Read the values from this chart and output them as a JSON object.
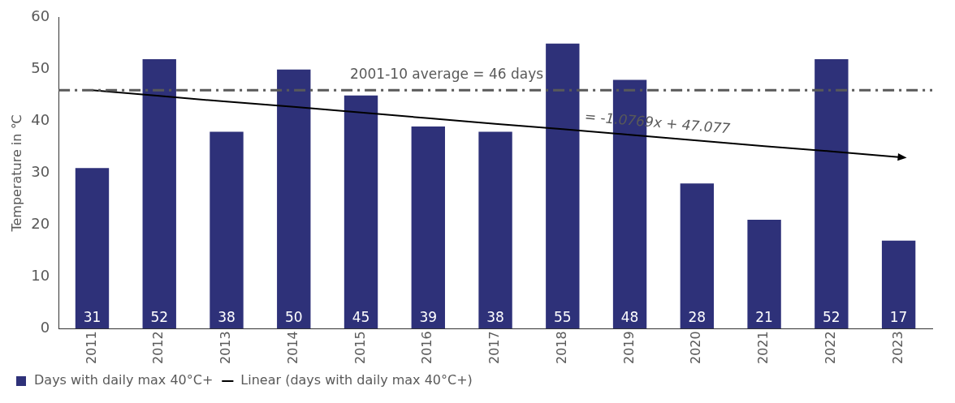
{
  "chart_data": {
    "type": "bar",
    "ylabel": "Temperature in ℃",
    "categories": [
      "2011",
      "2012",
      "2013",
      "2014",
      "2015",
      "2016",
      "2017",
      "2018",
      "2019",
      "2020",
      "2021",
      "2022",
      "2023"
    ],
    "series": [
      {
        "name": "Days with daily max 40°C+",
        "color": "#2e3179",
        "values": [
          31,
          52,
          38,
          50,
          45,
          39,
          38,
          55,
          48,
          28,
          21,
          52,
          17
        ],
        "value_labels": [
          "31",
          "52",
          "38",
          "50",
          "45",
          "39",
          "38",
          "55",
          "48",
          "28",
          "21",
          "52",
          "17"
        ]
      },
      {
        "name": "Linear (days with daily max 40°C+)",
        "type": "line",
        "color": "#000000",
        "values": [
          46.0,
          44.9,
          43.8,
          42.8,
          41.7,
          40.6,
          39.5,
          38.5,
          37.4,
          36.3,
          35.2,
          34.2,
          33.1
        ]
      }
    ],
    "ylim": [
      0,
      60
    ],
    "yticks": [
      0,
      10,
      20,
      30,
      40,
      50,
      60
    ],
    "grid": false,
    "legend": "bottom",
    "ref_lines": [
      {
        "axis": "y",
        "value": 46,
        "label": "2001-10 average = 46 days",
        "color": "#595959",
        "line_style": "dashdot"
      }
    ],
    "annotations": [
      "= -1.0769x + 47.077"
    ]
  }
}
